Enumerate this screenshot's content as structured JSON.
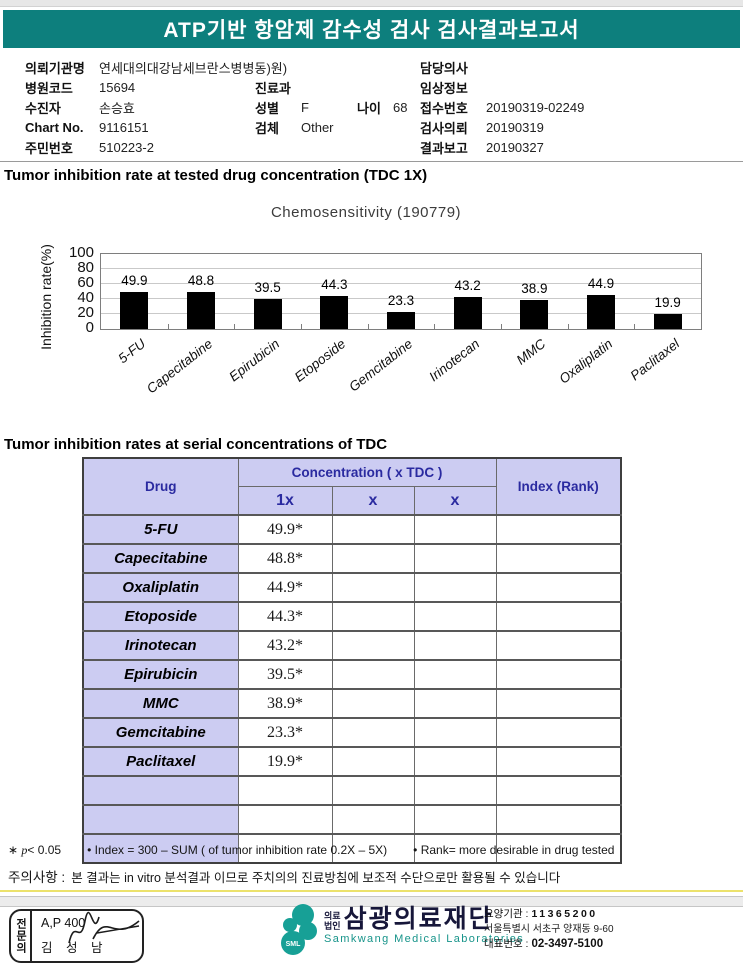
{
  "header": {
    "title": "ATP기반 항암제 감수성 검사 검사결과보고서"
  },
  "patient_info": {
    "col1": [
      {
        "label": "의뢰기관명",
        "value": "연세대의대강남세브란스병병동)원)"
      },
      {
        "label": "병원코드",
        "value": "15694"
      },
      {
        "label": "수진자",
        "value": "손승효"
      },
      {
        "label": "Chart No.",
        "value": "9116151"
      },
      {
        "label": "주민번호",
        "value": "510223-2"
      }
    ],
    "col2": [
      {
        "label": "",
        "value": ""
      },
      {
        "label": "진료과",
        "value": ""
      },
      {
        "label": "성별",
        "value": "F",
        "label2": "나이",
        "value2": "68"
      },
      {
        "label": "검체",
        "value": "Other"
      },
      {
        "label": "",
        "value": ""
      }
    ],
    "col3": [
      {
        "label": "담당의사",
        "value": ""
      },
      {
        "label": "임상정보",
        "value": ""
      },
      {
        "label": "접수번호",
        "value": "20190319-02249"
      },
      {
        "label": "검사의뢰",
        "value": "20190319"
      },
      {
        "label": "결과보고",
        "value": "20190327"
      }
    ]
  },
  "sections": {
    "chart_heading": "Tumor inhibition rate at tested drug concentration (TDC 1X)",
    "table_heading": "Tumor inhibition rates at serial concentrations of TDC"
  },
  "chart_data": {
    "type": "bar",
    "title": "Chemosensitivity (190779)",
    "ylabel": "Inhibition rate(%)",
    "categories": [
      "5-FU",
      "Capecitabine",
      "Epirubicin",
      "Etoposide",
      "Gemcitabine",
      "Irinotecan",
      "MMC",
      "Oxaliplatin",
      "Paclitaxel"
    ],
    "values": [
      49.9,
      48.8,
      39.5,
      44.3,
      23.3,
      43.2,
      38.9,
      44.9,
      19.9
    ],
    "ylim": [
      0,
      100
    ],
    "yticks": [
      0,
      20,
      40,
      60,
      80,
      100
    ],
    "grid": true,
    "bar_color": "#000000",
    "legend": "none"
  },
  "table": {
    "header": {
      "drug": "Drug",
      "concentration": "Concentration ( x TDC )",
      "index": "Index (Rank)",
      "sub": [
        "1x",
        "x",
        "x"
      ]
    },
    "rows": [
      {
        "drug": "5-FU",
        "c1": "49.9*",
        "c2": "",
        "c3": "",
        "index": ""
      },
      {
        "drug": "Capecitabine",
        "c1": "48.8*",
        "c2": "",
        "c3": "",
        "index": ""
      },
      {
        "drug": "Oxaliplatin",
        "c1": "44.9*",
        "c2": "",
        "c3": "",
        "index": ""
      },
      {
        "drug": "Etoposide",
        "c1": "44.3*",
        "c2": "",
        "c3": "",
        "index": ""
      },
      {
        "drug": "Irinotecan",
        "c1": "43.2*",
        "c2": "",
        "c3": "",
        "index": ""
      },
      {
        "drug": "Epirubicin",
        "c1": "39.5*",
        "c2": "",
        "c3": "",
        "index": ""
      },
      {
        "drug": "MMC",
        "c1": "38.9*",
        "c2": "",
        "c3": "",
        "index": ""
      },
      {
        "drug": "Gemcitabine",
        "c1": "23.3*",
        "c2": "",
        "c3": "",
        "index": ""
      },
      {
        "drug": "Paclitaxel",
        "c1": "19.9*",
        "c2": "",
        "c3": "",
        "index": ""
      },
      {
        "drug": "",
        "c1": "",
        "c2": "",
        "c3": "",
        "index": ""
      },
      {
        "drug": "",
        "c1": "",
        "c2": "",
        "c3": "",
        "index": ""
      },
      {
        "drug": "",
        "c1": "",
        "c2": "",
        "c3": "",
        "index": ""
      }
    ]
  },
  "footnotes": {
    "sig_marker": "∗",
    "sig_var": "p",
    "sig_rest": "< 0.05",
    "index_note": "Index = 300 – SUM ( of tumor inhibition rate 0.2X  –  5X)",
    "rank_note": "Rank= more desirable in drug tested",
    "bullet": "•"
  },
  "notice": {
    "label": "주의사항 :",
    "text": "본 결과는 in vitro 분석결과 이므로 주치의의 진료방침에 보조적 수단으로만 활용될 수 있습니다"
  },
  "footer": {
    "stamp": {
      "side_label": "전문의",
      "line1": "A,P 400",
      "line2": "김 성 남"
    },
    "logo": {
      "sml": "SML",
      "prefix_line1": "의료",
      "prefix_line2": "법인",
      "name": "삼광의료재단",
      "subtitle": "Samkwang Medical Laboratories",
      "teal": "#17a096"
    },
    "contact": {
      "line1_label": "요양기관 :",
      "line1_value": "11365200",
      "line2": "서울특별시 서초구 양재동 9-60",
      "line3_label": "대표번호 :",
      "line3_value": "02-3497-5100"
    }
  }
}
